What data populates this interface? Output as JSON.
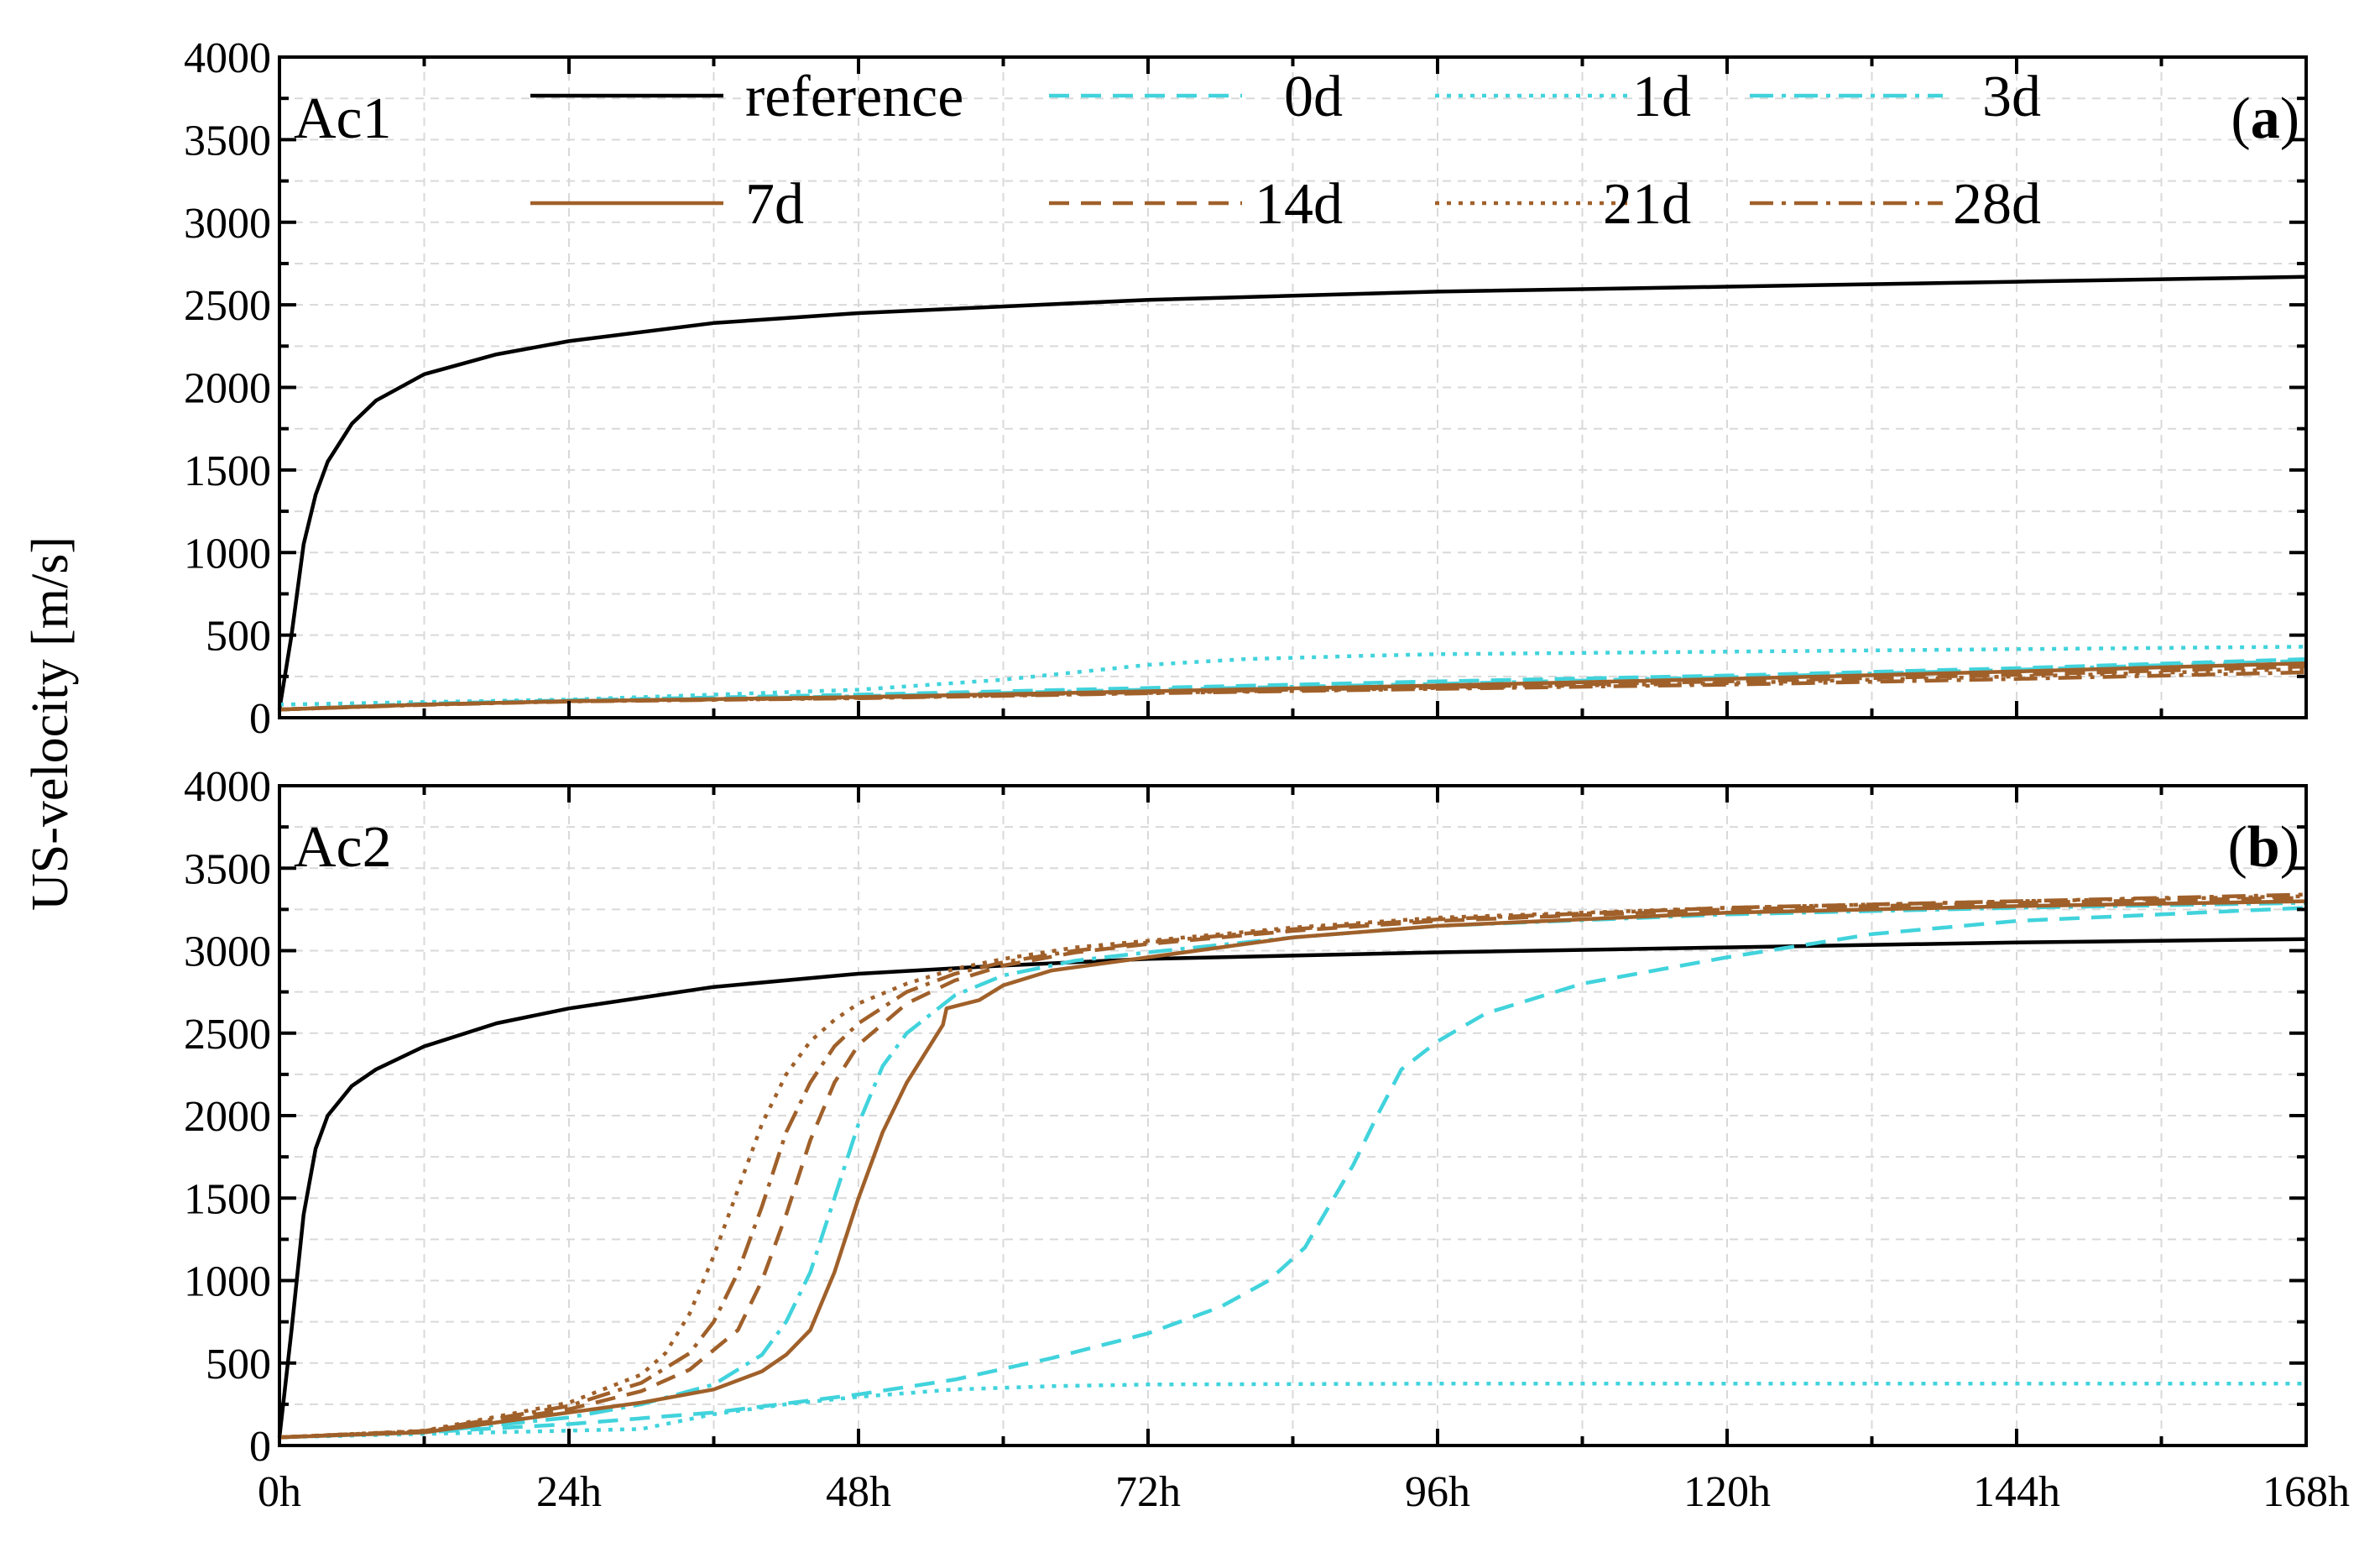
{
  "chart_data": [
    {
      "type": "line",
      "panel_label": "Ac1",
      "panel_tag": "a",
      "xlabel": "",
      "ylabel": "US-velocity [m/s]",
      "xlim": [
        0,
        168
      ],
      "ylim": [
        0,
        4000
      ],
      "x_ticks": [
        "0h",
        "24h",
        "48h",
        "72h",
        "96h",
        "120h",
        "144h",
        "168h"
      ],
      "y_ticks": [
        "0",
        "500",
        "1000",
        "1500",
        "2000",
        "2500",
        "3000",
        "3500",
        "4000"
      ],
      "grid": true,
      "legend_position": "top",
      "series": [
        {
          "name": "reference",
          "color": "#000000",
          "dash": "solid",
          "x": [
            0,
            1,
            2,
            3,
            4,
            6,
            8,
            12,
            18,
            24,
            36,
            48,
            72,
            96,
            120,
            144,
            168
          ],
          "y": [
            50,
            500,
            1050,
            1350,
            1550,
            1780,
            1920,
            2080,
            2200,
            2280,
            2390,
            2450,
            2530,
            2580,
            2610,
            2640,
            2670
          ]
        },
        {
          "name": "0d",
          "color": "#41d3dc",
          "dash": "dashed",
          "x": [
            0,
            12,
            24,
            48,
            72,
            96,
            120,
            144,
            168
          ],
          "y": [
            50,
            85,
            105,
            140,
            180,
            220,
            255,
            300,
            355
          ]
        },
        {
          "name": "1d",
          "color": "#41d3dc",
          "dash": "dotted",
          "x": [
            0,
            12,
            24,
            36,
            48,
            60,
            72,
            80,
            90,
            96,
            120,
            144,
            168
          ],
          "y": [
            80,
            95,
            110,
            140,
            170,
            230,
            320,
            355,
            375,
            385,
            400,
            415,
            430
          ]
        },
        {
          "name": "3d",
          "color": "#41d3dc",
          "dash": "dashdot",
          "x": [
            0,
            12,
            24,
            48,
            72,
            96,
            120,
            144,
            168
          ],
          "y": [
            50,
            80,
            100,
            130,
            170,
            205,
            245,
            290,
            345
          ]
        },
        {
          "name": "7d",
          "color": "#a0602a",
          "dash": "solid",
          "x": [
            0,
            12,
            24,
            48,
            72,
            96,
            120,
            144,
            168
          ],
          "y": [
            50,
            80,
            100,
            125,
            160,
            195,
            235,
            280,
            330
          ]
        },
        {
          "name": "14d",
          "color": "#a0602a",
          "dash": "dashed",
          "x": [
            0,
            12,
            24,
            48,
            72,
            96,
            120,
            144,
            168
          ],
          "y": [
            50,
            80,
            100,
            122,
            155,
            185,
            220,
            260,
            310
          ]
        },
        {
          "name": "21d",
          "color": "#a0602a",
          "dash": "dotted",
          "x": [
            0,
            12,
            24,
            48,
            72,
            96,
            120,
            144,
            168
          ],
          "y": [
            50,
            80,
            100,
            120,
            150,
            180,
            210,
            250,
            295
          ]
        },
        {
          "name": "28d",
          "color": "#a0602a",
          "dash": "dashdot",
          "x": [
            0,
            12,
            24,
            48,
            72,
            96,
            120,
            144,
            168
          ],
          "y": [
            50,
            78,
            98,
            118,
            148,
            175,
            200,
            235,
            275
          ]
        }
      ]
    },
    {
      "type": "line",
      "panel_label": "Ac2",
      "panel_tag": "b",
      "xlabel": "",
      "ylabel": "US-velocity [m/s]",
      "xlim": [
        0,
        168
      ],
      "ylim": [
        0,
        4000
      ],
      "x_ticks": [
        "0h",
        "24h",
        "48h",
        "72h",
        "96h",
        "120h",
        "144h",
        "168h"
      ],
      "y_ticks": [
        "0",
        "500",
        "1000",
        "1500",
        "2000",
        "2500",
        "3000",
        "3500",
        "4000"
      ],
      "grid": true,
      "series": [
        {
          "name": "reference",
          "color": "#000000",
          "dash": "solid",
          "x": [
            0,
            1,
            2,
            3,
            4,
            6,
            8,
            12,
            18,
            24,
            36,
            48,
            60,
            72,
            96,
            120,
            144,
            168
          ],
          "y": [
            50,
            700,
            1400,
            1800,
            2000,
            2180,
            2280,
            2420,
            2560,
            2650,
            2780,
            2860,
            2910,
            2950,
            2990,
            3020,
            3050,
            3070
          ]
        },
        {
          "name": "0d",
          "color": "#41d3dc",
          "dash": "dashed",
          "x": [
            0,
            12,
            24,
            36,
            48,
            56,
            64,
            72,
            78,
            82,
            85,
            87,
            89,
            91,
            93,
            96,
            100,
            108,
            120,
            132,
            144,
            168
          ],
          "y": [
            50,
            80,
            130,
            200,
            310,
            400,
            530,
            680,
            840,
            1000,
            1200,
            1450,
            1700,
            2000,
            2280,
            2450,
            2620,
            2800,
            2960,
            3100,
            3180,
            3260
          ]
        },
        {
          "name": "1d",
          "color": "#41d3dc",
          "dash": "dotted",
          "x": [
            0,
            12,
            24,
            30,
            36,
            42,
            48,
            56,
            64,
            72,
            96,
            120,
            144,
            168
          ],
          "y": [
            50,
            70,
            90,
            100,
            190,
            250,
            295,
            340,
            360,
            370,
            375,
            375,
            375,
            375
          ]
        },
        {
          "name": "3d",
          "color": "#41d3dc",
          "dash": "dashdot",
          "x": [
            0,
            12,
            24,
            30,
            36,
            40,
            42,
            44,
            46,
            48,
            50,
            52,
            56,
            60,
            66,
            72,
            84,
            96,
            120,
            144,
            168
          ],
          "y": [
            50,
            80,
            170,
            250,
            370,
            550,
            750,
            1050,
            1500,
            1950,
            2300,
            2500,
            2730,
            2850,
            2940,
            2990,
            3080,
            3150,
            3220,
            3260,
            3290
          ]
        },
        {
          "name": "7d",
          "color": "#a0602a",
          "dash": "solid",
          "x": [
            0,
            12,
            24,
            30,
            36,
            40,
            42,
            44,
            46,
            48,
            50,
            52,
            55,
            55.3,
            58,
            60,
            64,
            72,
            84,
            96,
            120,
            144,
            168
          ],
          "y": [
            50,
            80,
            200,
            260,
            340,
            450,
            550,
            700,
            1050,
            1500,
            1900,
            2200,
            2550,
            2650,
            2700,
            2790,
            2880,
            2960,
            3080,
            3150,
            3230,
            3270,
            3300
          ]
        },
        {
          "name": "14d",
          "color": "#a0602a",
          "dash": "dashed",
          "x": [
            0,
            12,
            24,
            30,
            34,
            38,
            40,
            42,
            44,
            46,
            48,
            52,
            56,
            60,
            66,
            72,
            84,
            96,
            120,
            144,
            168
          ],
          "y": [
            50,
            85,
            220,
            330,
            460,
            700,
            1000,
            1400,
            1850,
            2200,
            2430,
            2680,
            2820,
            2910,
            2990,
            3040,
            3120,
            3180,
            3250,
            3290,
            3320
          ]
        },
        {
          "name": "21d",
          "color": "#a0602a",
          "dash": "dotted",
          "x": [
            0,
            12,
            24,
            30,
            32,
            34,
            36,
            38,
            40,
            42,
            44,
            46,
            48,
            52,
            56,
            60,
            66,
            72,
            84,
            96,
            120,
            144,
            168
          ],
          "y": [
            50,
            90,
            260,
            430,
            560,
            800,
            1150,
            1550,
            1950,
            2250,
            2450,
            2580,
            2680,
            2800,
            2890,
            2950,
            3020,
            3060,
            3140,
            3200,
            3260,
            3300,
            3330
          ]
        },
        {
          "name": "28d",
          "color": "#a0602a",
          "dash": "dashdot",
          "x": [
            0,
            12,
            24,
            30,
            34,
            36,
            38,
            40,
            42,
            44,
            46,
            48,
            52,
            56,
            60,
            66,
            72,
            84,
            96,
            120,
            144,
            168
          ],
          "y": [
            50,
            88,
            240,
            380,
            560,
            750,
            1050,
            1450,
            1900,
            2200,
            2420,
            2560,
            2750,
            2860,
            2930,
            3000,
            3050,
            3130,
            3190,
            3260,
            3300,
            3340
          ]
        }
      ]
    }
  ]
}
